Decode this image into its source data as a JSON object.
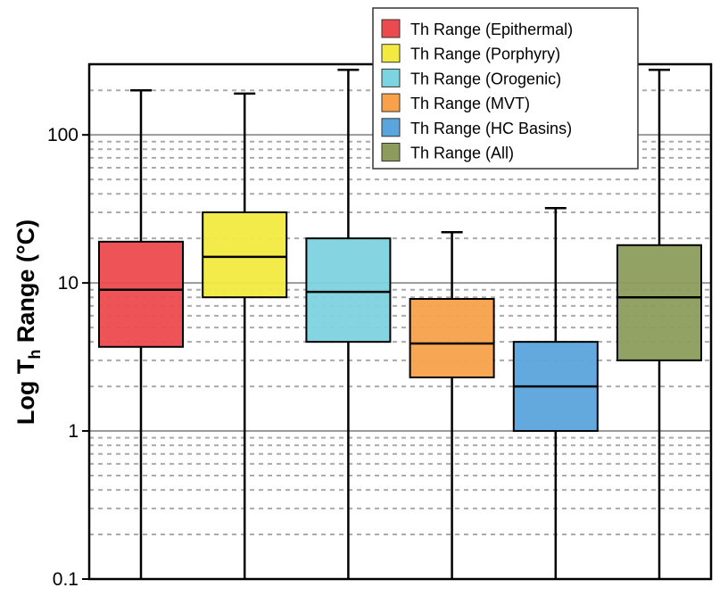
{
  "chart_data": {
    "type": "box",
    "title": "",
    "xlabel": "",
    "ylabel": "Log T",
    "ylabel_sub": "h",
    "ylabel_suffix": " Range (°C)",
    "yscale": "log",
    "ylim": [
      0.1,
      300
    ],
    "yticks": [
      0.1,
      1,
      10,
      100
    ],
    "ytick_labels": [
      "0.1",
      "1",
      "10",
      "100"
    ],
    "grid": {
      "major": "solid",
      "minor": "dashed"
    },
    "legend_position": "top-right",
    "series": [
      {
        "name": "Th Range (Epithermal)",
        "color": "#ec4a4e",
        "min": 0.1,
        "q1": 3.7,
        "median": 9,
        "q3": 19,
        "max": 200
      },
      {
        "name": "Th Range (Porphyry)",
        "color": "#f2ea3f",
        "min": 0.1,
        "q1": 8,
        "median": 15,
        "q3": 30,
        "max": 190
      },
      {
        "name": "Th Range (Orogenic)",
        "color": "#7dd3df",
        "min": 0.1,
        "q1": 4,
        "median": 8.7,
        "q3": 20,
        "max": 275
      },
      {
        "name": "Th Range (MVT)",
        "color": "#f7a24b",
        "min": 0.1,
        "q1": 2.3,
        "median": 3.9,
        "q3": 7.8,
        "max": 22
      },
      {
        "name": "Th Range (HC Basins)",
        "color": "#5ba4dc",
        "min": 0.1,
        "q1": 1,
        "median": 2,
        "q3": 4,
        "max": 32
      },
      {
        "name": "Th Range (All)",
        "color": "#8c9c5c",
        "min": 0.1,
        "q1": 3,
        "median": 8,
        "q3": 18,
        "max": 275
      }
    ]
  }
}
